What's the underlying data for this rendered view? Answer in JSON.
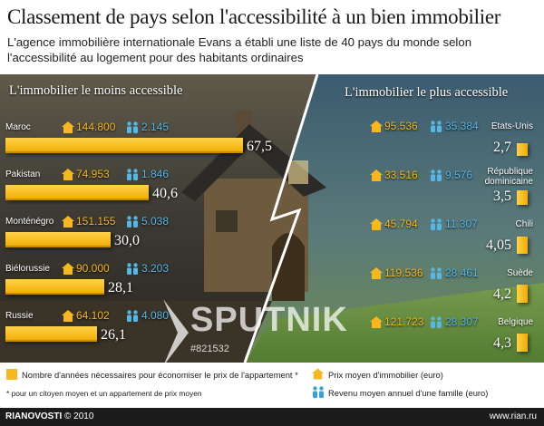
{
  "title": "Classement de pays selon l'accessibilité à un bien immobilier",
  "subtitle": "L'agence immobilière internationale Evans a établi une liste de 40 pays du monde selon l'accessibilité au logement pour des habitants ordinaires",
  "panels": {
    "left_title": "L'immobilier le moins accessible",
    "right_title": "L'immobilier le plus accessible"
  },
  "chart_data": [
    {
      "type": "bar",
      "title": "L'immobilier le moins accessible",
      "categories": [
        "Maroc",
        "Pakistan",
        "Monténégro",
        "Biélorussie",
        "Russie"
      ],
      "values": [
        67.5,
        40.6,
        30.0,
        28.1,
        26.1
      ],
      "value_labels": [
        "67,5",
        "40,6",
        "30,0",
        "28,1",
        "26,1"
      ],
      "prix_moyen": [
        "144.800",
        "74.953",
        "151.155",
        "90.000",
        "64.102"
      ],
      "revenu_moyen": [
        "2.145",
        "1.846",
        "5.038",
        "3.203",
        "4.080"
      ]
    },
    {
      "type": "bar",
      "title": "L'immobilier le plus accessible",
      "categories": [
        "Etats-Unis",
        "République dominicaine",
        "Chili",
        "Suède",
        "Belgique"
      ],
      "category_lines": [
        [
          "Etats-Unis"
        ],
        [
          "République",
          "dominicaine"
        ],
        [
          "Chili"
        ],
        [
          "Suède"
        ],
        [
          "Belgique"
        ]
      ],
      "values": [
        2.7,
        3.5,
        4.05,
        4.2,
        4.3
      ],
      "value_labels": [
        "2,7",
        "3,5",
        "4,05",
        "4,2",
        "4,3"
      ],
      "prix_moyen": [
        "95.536",
        "33.516",
        "45.794",
        "119.536",
        "121.723"
      ],
      "revenu_moyen": [
        "35.384",
        "9.576",
        "11.307",
        "28.461",
        "28.307"
      ]
    }
  ],
  "colors": {
    "bar": "#f6b71f",
    "price": "#f6b71f",
    "income": "#55b7e6"
  },
  "watermark": {
    "text": "SPUTNIK",
    "id": "#821532"
  },
  "legend": {
    "bar_label": "Nombre d'années nécessaires pour économiser le prix de l'appartement *",
    "footnote": "* pour un citoyen moyen et un appartement de prix moyen",
    "price_label": "Prix moyen d'immobilier (euro)",
    "income_label": "Revenu moyen annuel d'une famille (euro)",
    "price_icon": "house-icon",
    "income_icon": "family-icon"
  },
  "footer": {
    "brand": "RIANOVOSTI",
    "copyright": "© 2010",
    "site": "www.rian.ru"
  }
}
